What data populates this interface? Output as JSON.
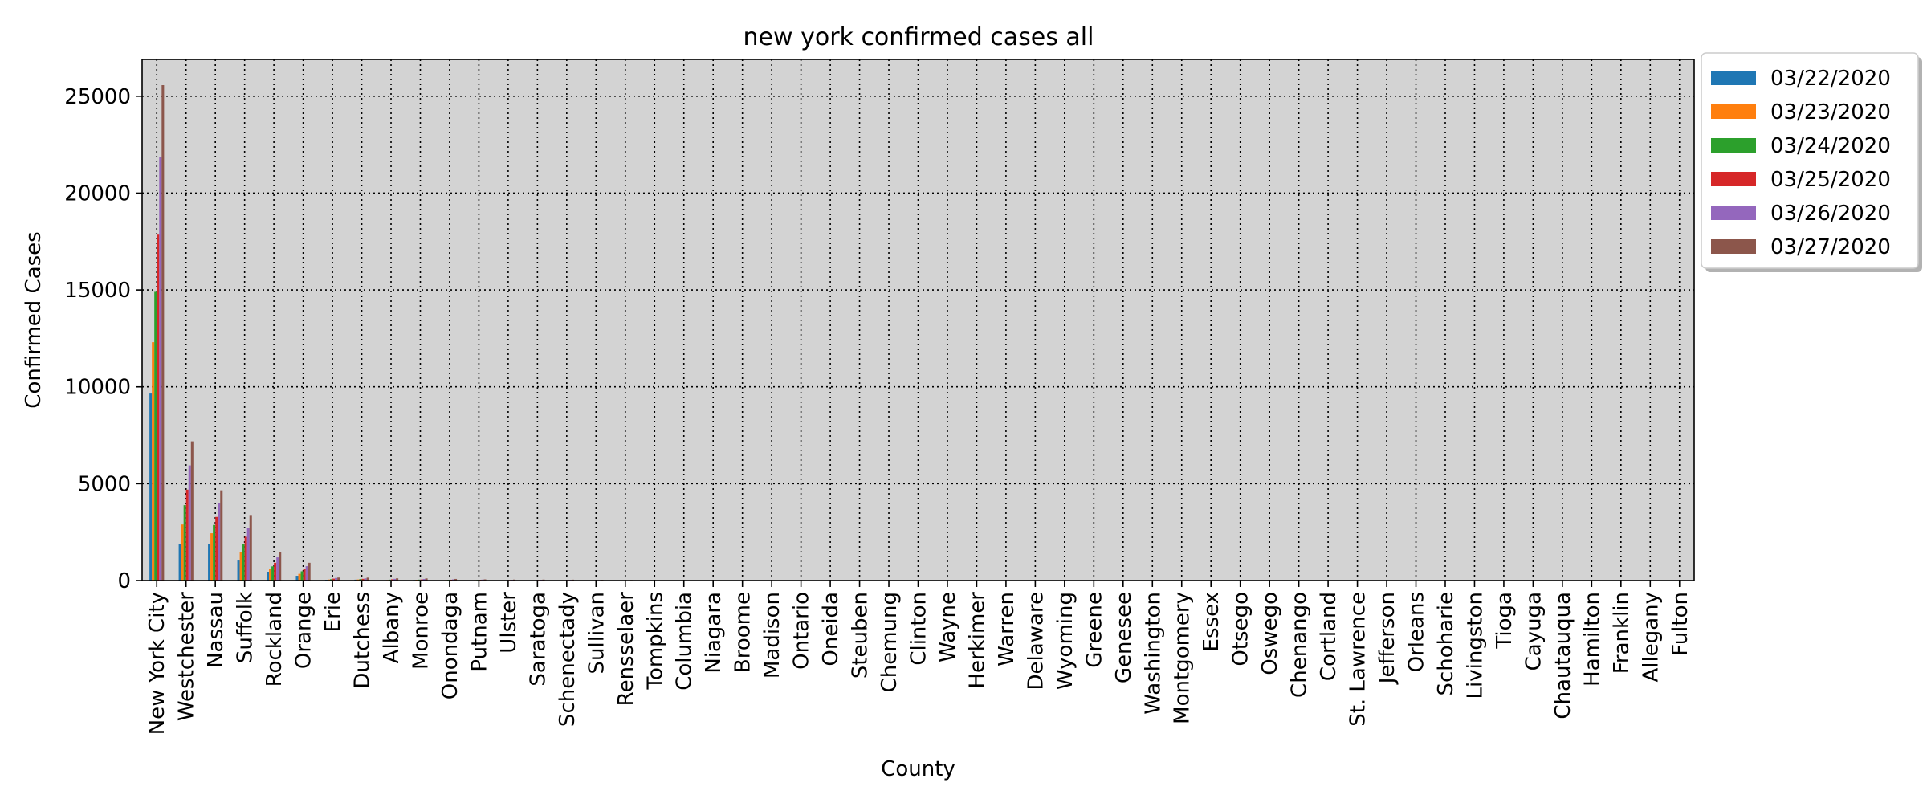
{
  "chart_data": {
    "type": "bar",
    "title": "new york confirmed cases all",
    "xlabel": "County",
    "ylabel": "Confirmed Cases",
    "ylim": [
      0,
      26900
    ],
    "yticks": [
      0,
      5000,
      10000,
      15000,
      20000,
      25000
    ],
    "grid": true,
    "legend_position": "outside-top-right",
    "plot_background": "#d3d3d3",
    "categories": [
      "New York City",
      "Westchester",
      "Nassau",
      "Suffolk",
      "Rockland",
      "Orange",
      "Erie",
      "Dutchess",
      "Albany",
      "Monroe",
      "Onondaga",
      "Putnam",
      "Ulster",
      "Saratoga",
      "Schenectady",
      "Sullivan",
      "Rensselaer",
      "Tompkins",
      "Columbia",
      "Niagara",
      "Broome",
      "Madison",
      "Ontario",
      "Oneida",
      "Steuben",
      "Chemung",
      "Clinton",
      "Wayne",
      "Herkimer",
      "Warren",
      "Delaware",
      "Wyoming",
      "Greene",
      "Genesee",
      "Washington",
      "Montgomery",
      "Essex",
      "Otsego",
      "Oswego",
      "Chenango",
      "Cortland",
      "St. Lawrence",
      "Jefferson",
      "Orleans",
      "Schoharie",
      "Livingston",
      "Tioga",
      "Cayuga",
      "Chautauqua",
      "Hamilton",
      "Franklin",
      "Allegany",
      "Fulton"
    ],
    "series": [
      {
        "name": "03/22/2020",
        "color": "#1f77b4",
        "values": [
          9654,
          1873,
          1900,
          1034,
          455,
          247,
          38,
          46,
          22,
          30,
          18,
          21,
          10,
          12,
          10,
          8,
          6,
          4,
          4,
          4,
          3,
          3,
          3,
          2,
          2,
          2,
          2,
          2,
          1,
          1,
          1,
          1,
          1,
          1,
          1,
          1,
          1,
          1,
          1,
          0,
          0,
          0,
          0,
          0,
          0,
          0,
          0,
          0,
          0,
          0,
          0,
          0,
          0
        ]
      },
      {
        "name": "03/23/2020",
        "color": "#ff7f0e",
        "values": [
          12305,
          2894,
          2442,
          1458,
          592,
          347,
          54,
          57,
          29,
          40,
          25,
          24,
          15,
          16,
          14,
          12,
          9,
          6,
          6,
          6,
          4,
          4,
          4,
          3,
          3,
          3,
          3,
          3,
          2,
          2,
          2,
          2,
          2,
          2,
          2,
          2,
          1,
          1,
          1,
          1,
          1,
          1,
          1,
          1,
          1,
          1,
          1,
          1,
          1,
          1,
          1,
          1,
          1
        ]
      },
      {
        "name": "03/24/2020",
        "color": "#2ca02c",
        "values": [
          14904,
          3891,
          2869,
          1880,
          733,
          477,
          72,
          77,
          47,
          48,
          34,
          32,
          21,
          21,
          19,
          16,
          12,
          8,
          8,
          8,
          6,
          6,
          5,
          4,
          4,
          4,
          4,
          4,
          3,
          3,
          3,
          3,
          3,
          3,
          3,
          3,
          2,
          2,
          2,
          2,
          2,
          2,
          2,
          2,
          1,
          1,
          1,
          1,
          1,
          1,
          1,
          1,
          1
        ]
      },
      {
        "name": "03/25/2020",
        "color": "#d62728",
        "values": [
          17856,
          4691,
          3285,
          2260,
          920,
          618,
          100,
          90,
          66,
          57,
          44,
          38,
          28,
          29,
          27,
          22,
          16,
          11,
          11,
          10,
          8,
          7,
          6,
          6,
          5,
          5,
          5,
          5,
          4,
          4,
          4,
          4,
          4,
          4,
          3,
          3,
          3,
          3,
          3,
          3,
          3,
          2,
          2,
          2,
          2,
          2,
          2,
          2,
          2,
          1,
          1,
          1,
          1
        ]
      },
      {
        "name": "03/26/2020",
        "color": "#9467bd",
        "values": [
          21873,
          5944,
          4018,
          2735,
          1197,
          742,
          135,
          113,
          90,
          84,
          62,
          50,
          38,
          40,
          37,
          29,
          21,
          14,
          14,
          14,
          11,
          10,
          9,
          8,
          7,
          7,
          7,
          7,
          6,
          6,
          5,
          5,
          5,
          5,
          4,
          4,
          4,
          4,
          4,
          4,
          3,
          3,
          3,
          3,
          3,
          3,
          2,
          2,
          2,
          2,
          2,
          2,
          2
        ]
      },
      {
        "name": "03/27/2020",
        "color": "#8c564b",
        "values": [
          25573,
          7187,
          4657,
          3385,
          1457,
          918,
          156,
          152,
          115,
          112,
          85,
          62,
          52,
          51,
          47,
          36,
          28,
          19,
          18,
          18,
          14,
          13,
          11,
          10,
          9,
          9,
          9,
          9,
          8,
          8,
          7,
          7,
          6,
          6,
          6,
          6,
          5,
          5,
          5,
          5,
          4,
          4,
          4,
          4,
          4,
          3,
          3,
          3,
          3,
          2,
          2,
          2,
          2
        ]
      }
    ]
  }
}
